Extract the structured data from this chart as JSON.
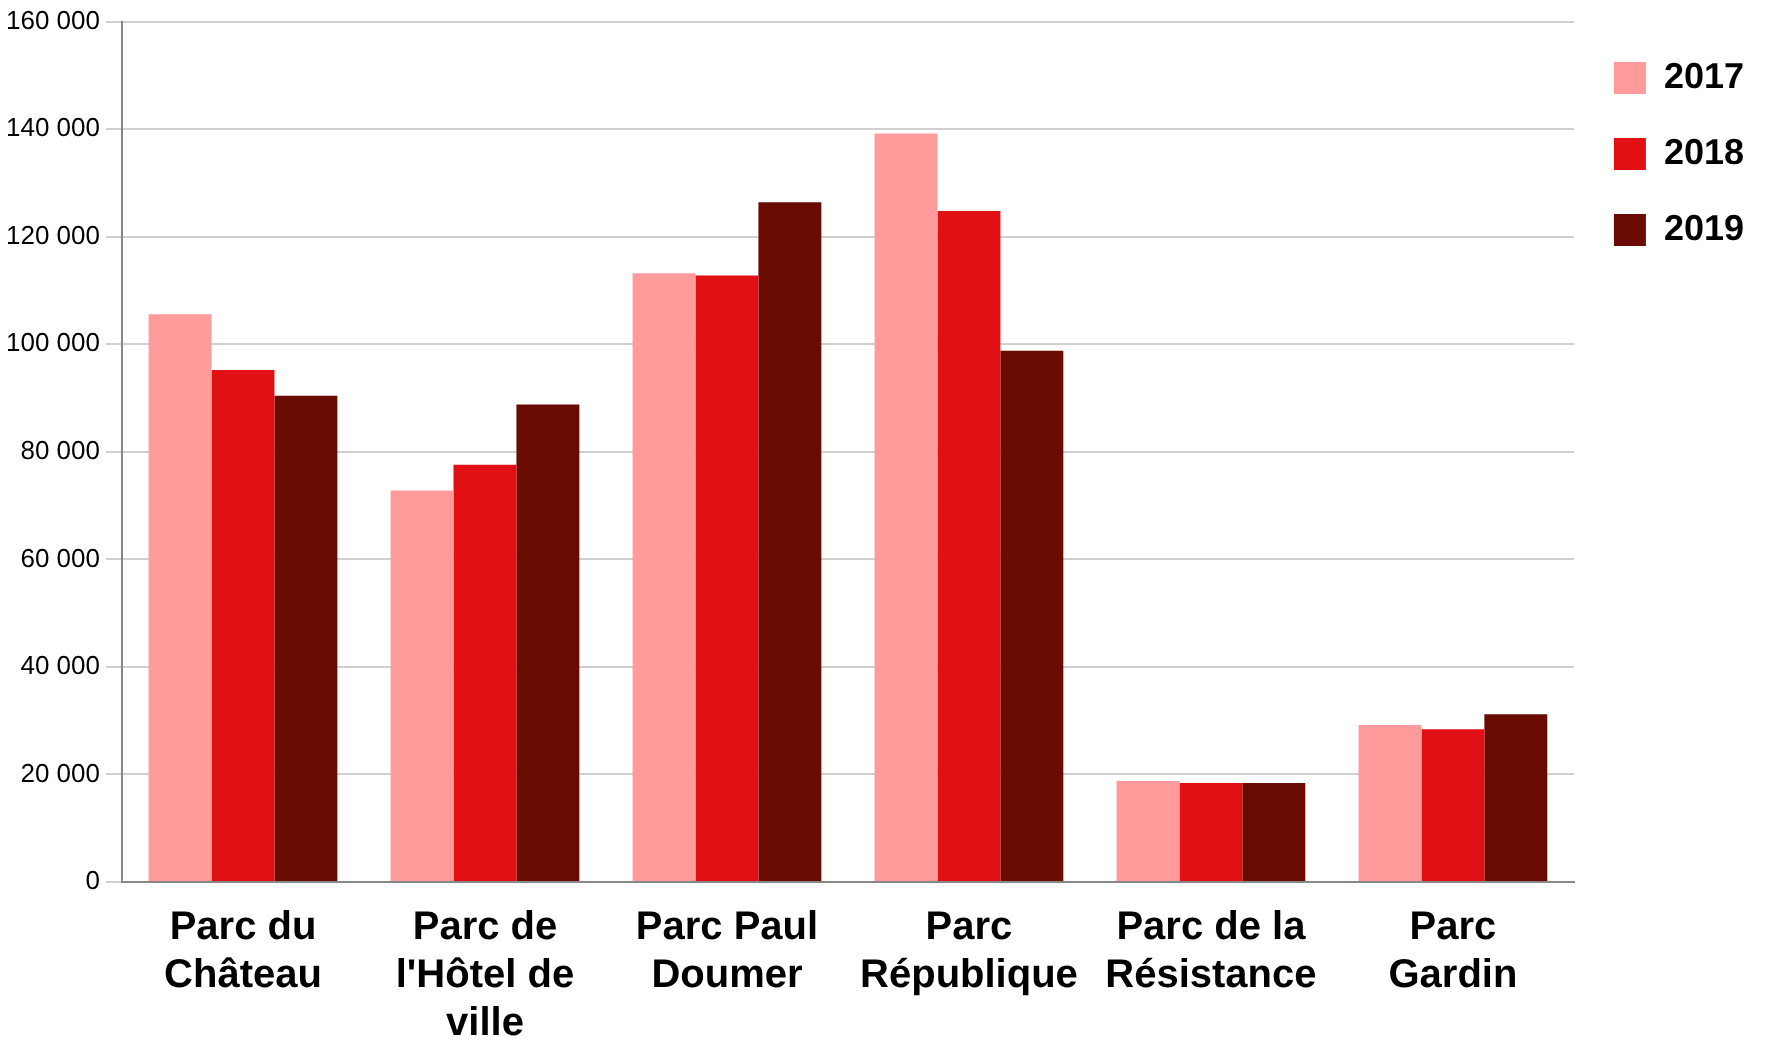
{
  "chart_data": {
    "type": "bar",
    "categories": [
      "Parc du Château",
      "Parc de l'Hôtel de ville",
      "Parc Paul Doumer",
      "Parc République",
      "Parc de la Résistance",
      "Parc Gardin"
    ],
    "series": [
      {
        "name": "2017",
        "color": "#ff9b9b",
        "values": [
          105600,
          72800,
          113200,
          139200,
          18800,
          29200
        ]
      },
      {
        "name": "2018",
        "color": "#e01014",
        "values": [
          95200,
          77600,
          112800,
          124800,
          18400,
          28400
        ]
      },
      {
        "name": "2019",
        "color": "#6a0b02",
        "values": [
          90400,
          88800,
          126400,
          98800,
          18400,
          31200
        ]
      }
    ],
    "ylim": [
      0,
      160000
    ],
    "yticks": [
      0,
      {
        "value": 20000,
        "label": "20 000"
      },
      {
        "value": 40000,
        "label": "40 000"
      },
      {
        "value": 60000,
        "label": "60 000"
      },
      {
        "value": 80000,
        "label": "80 000"
      },
      {
        "value": 100000,
        "label": "100 000"
      },
      {
        "value": 120000,
        "label": "120 000"
      },
      {
        "value": 140000,
        "label": "140 000"
      },
      {
        "value": 160000,
        "label": "160 000"
      }
    ],
    "grid": "y",
    "legend": "top right"
  }
}
